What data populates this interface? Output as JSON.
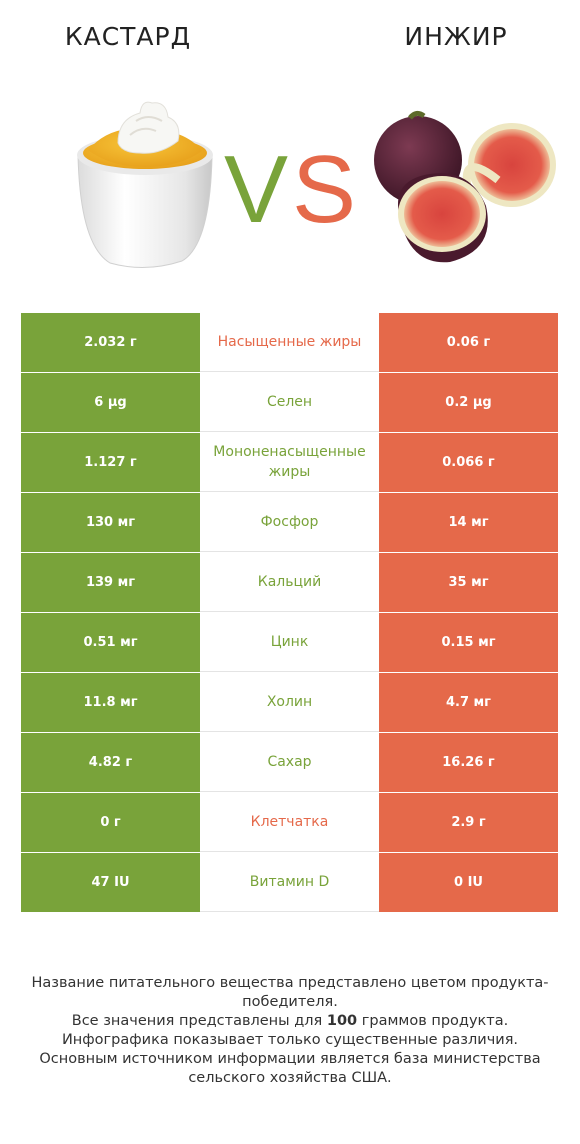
{
  "header": {
    "left_title": "КАСТАРД",
    "right_title": "ИНЖИР",
    "vs_left": "V",
    "vs_right": "S"
  },
  "colors": {
    "left": "#79a33a",
    "right": "#e5694a",
    "neutral": "#ffffff"
  },
  "rows": [
    {
      "left": "2.032 г",
      "label": "Насыщенные жиры",
      "right": "0.06 г",
      "winner": "right"
    },
    {
      "left": "6 µg",
      "label": "Селен",
      "right": "0.2 µg",
      "winner": "left"
    },
    {
      "left": "1.127 г",
      "label": "Мононенасыщенные жиры",
      "right": "0.066 г",
      "winner": "left"
    },
    {
      "left": "130 мг",
      "label": "Фосфор",
      "right": "14 мг",
      "winner": "left"
    },
    {
      "left": "139 мг",
      "label": "Кальций",
      "right": "35 мг",
      "winner": "left"
    },
    {
      "left": "0.51 мг",
      "label": "Цинк",
      "right": "0.15 мг",
      "winner": "left"
    },
    {
      "left": "11.8 мг",
      "label": "Холин",
      "right": "4.7 мг",
      "winner": "left"
    },
    {
      "left": "4.82 г",
      "label": "Сахар",
      "right": "16.26 г",
      "winner": "left"
    },
    {
      "left": "0 г",
      "label": "Клетчатка",
      "right": "2.9 г",
      "winner": "right"
    },
    {
      "left": "47 IU",
      "label": "Витамин D",
      "right": "0 IU",
      "winner": "left"
    }
  ],
  "footer": {
    "line1": "Название питательного вещества представлено цветом продукта-победителя.",
    "line2_pre": "Все значения представлены для ",
    "line2_bold": "100",
    "line2_post": " граммов продукта.",
    "line3": "Инфографика показывает только существенные различия.",
    "line4": "Основным источником информации является база министерства сельского хозяйства США."
  }
}
